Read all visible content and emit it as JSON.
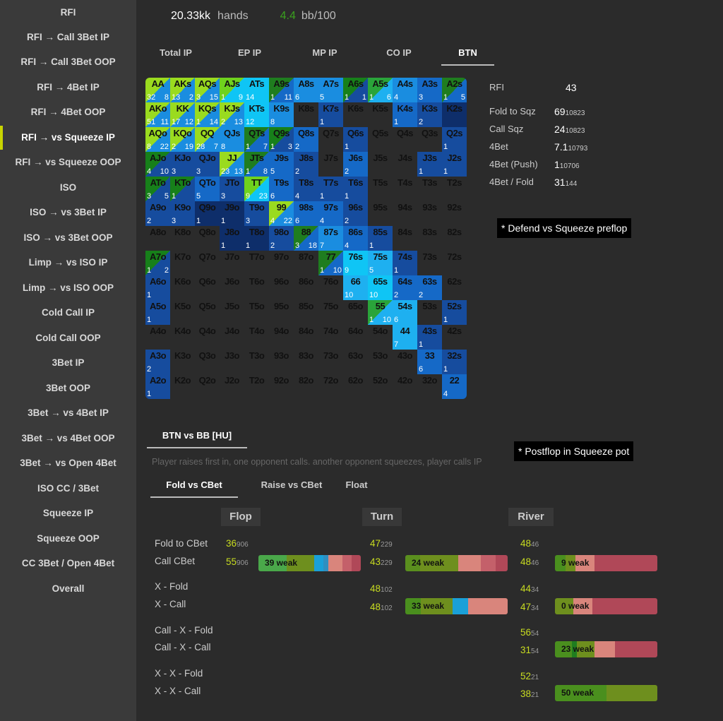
{
  "sidebar": {
    "items": [
      {
        "label": "RFI"
      },
      {
        "label": "RFI → Call 3Bet IP"
      },
      {
        "label": "RFI → Call 3Bet OOP"
      },
      {
        "label": "RFI → 4Bet IP"
      },
      {
        "label": "RFI → 4Bet OOP"
      },
      {
        "label": "RFI → vs Squeeze IP",
        "active": true
      },
      {
        "label": "RFI → vs Squeeze OOP"
      },
      {
        "label": "ISO"
      },
      {
        "label": "ISO → vs 3Bet IP"
      },
      {
        "label": "ISO → vs 3Bet OOP"
      },
      {
        "label": "Limp → vs ISO IP"
      },
      {
        "label": "Limp → vs ISO OOP"
      },
      {
        "label": "Cold Call IP"
      },
      {
        "label": "Cold Call OOP"
      },
      {
        "label": "3Bet IP"
      },
      {
        "label": "3Bet OOP"
      },
      {
        "label": "3Bet → vs 4Bet IP"
      },
      {
        "label": "3Bet → vs 4Bet OOP"
      },
      {
        "label": "3Bet → vs Open 4Bet"
      },
      {
        "label": "ISO CC / 3Bet"
      },
      {
        "label": "Squeeze IP"
      },
      {
        "label": "Squeeze OOP"
      },
      {
        "label": "CC 3Bet / Open 4Bet"
      },
      {
        "label": "Overall"
      }
    ]
  },
  "header": {
    "hands_value": "20.33kk",
    "hands_label": "hands",
    "bb_value": "4.4",
    "bb_label": "bb/100"
  },
  "position_tabs": [
    {
      "label": "Total IP"
    },
    {
      "label": "EP IP"
    },
    {
      "label": "MP IP"
    },
    {
      "label": "CO IP"
    },
    {
      "label": "BTN",
      "active": true
    }
  ],
  "range_grid": {
    "colors": {
      "blue_dark": "#0e2e6a",
      "blue_light": "#0fc5f5",
      "green": "#9adb1f"
    },
    "rows": [
      [
        [
          "AA",
          "gA",
          "32",
          "8"
        ],
        [
          "AKs",
          "gA",
          "13",
          "2"
        ],
        [
          "AQs",
          "gA",
          "3",
          "15"
        ],
        [
          "AJs",
          "gC",
          "1",
          "9"
        ],
        [
          "ATs",
          "c6",
          "",
          "14"
        ],
        [
          "A9s",
          "gB",
          "1",
          "11"
        ],
        [
          "A8s",
          "c4",
          "",
          "6"
        ],
        [
          "A7s",
          "c4",
          "",
          "5"
        ],
        [
          "A6s",
          "gD",
          "1",
          "1"
        ],
        [
          "A5s",
          "gE",
          "1",
          "6"
        ],
        [
          "A4s",
          "c4",
          "",
          "4"
        ],
        [
          "A3s",
          "c3",
          "",
          "3"
        ],
        [
          "A2s",
          "gB",
          "1",
          "5"
        ]
      ],
      [
        [
          "AKo",
          "gA",
          "51",
          "11"
        ],
        [
          "KK",
          "gA",
          "17",
          "12"
        ],
        [
          "KQs",
          "gA",
          "1",
          "14"
        ],
        [
          "KJs",
          "gA",
          "2",
          "13"
        ],
        [
          "KTs",
          "c6",
          "",
          "12"
        ],
        [
          "K9s",
          "c4",
          "",
          "8"
        ],
        [
          "K8s",
          "c0",
          "",
          ""
        ],
        [
          "K7s",
          "c2",
          "",
          "1"
        ],
        [
          "K6s",
          "c0",
          "",
          ""
        ],
        [
          "K5s",
          "c0",
          "",
          ""
        ],
        [
          "K4s",
          "c3",
          "",
          "1"
        ],
        [
          "K3s",
          "c2",
          "",
          "2"
        ],
        [
          "K2s",
          "c1",
          "",
          ""
        ]
      ],
      [
        [
          "AQo",
          "gA",
          "8",
          "22"
        ],
        [
          "KQo",
          "gA",
          "2",
          "19"
        ],
        [
          "QQ",
          "gA",
          "28",
          "7"
        ],
        [
          "QJs",
          "c4",
          "",
          "8"
        ],
        [
          "QTs",
          "gB",
          "1",
          "7"
        ],
        [
          "Q9s",
          "gD",
          "1",
          "3"
        ],
        [
          "Q8s",
          "c3",
          "",
          "2"
        ],
        [
          "Q7s",
          "c0",
          "",
          ""
        ],
        [
          "Q6s",
          "c2",
          "",
          "1"
        ],
        [
          "Q5s",
          "c0",
          "",
          ""
        ],
        [
          "Q4s",
          "c0",
          "",
          ""
        ],
        [
          "Q3s",
          "c0",
          "",
          ""
        ],
        [
          "Q2s",
          "c2",
          "",
          "1"
        ]
      ],
      [
        [
          "AJo",
          "gD",
          "4",
          "10"
        ],
        [
          "KJo",
          "c2",
          "",
          "3"
        ],
        [
          "QJo",
          "c2",
          "",
          "3"
        ],
        [
          "JJ",
          "gA",
          "23",
          "13"
        ],
        [
          "JTs",
          "gB",
          "1",
          "8"
        ],
        [
          "J9s",
          "c3",
          "",
          "5"
        ],
        [
          "J8s",
          "c2",
          "",
          "2"
        ],
        [
          "J7s",
          "c0",
          "",
          ""
        ],
        [
          "J6s",
          "c3",
          "",
          "2"
        ],
        [
          "J5s",
          "c0",
          "",
          ""
        ],
        [
          "J4s",
          "c0",
          "",
          ""
        ],
        [
          "J3s",
          "c2",
          "",
          "1"
        ],
        [
          "J2s",
          "c2",
          "",
          "1"
        ]
      ],
      [
        [
          "ATo",
          "gD",
          "3",
          "5"
        ],
        [
          "KTo",
          "gD",
          "",
          "1"
        ],
        [
          "QTo",
          "c3",
          "",
          "5"
        ],
        [
          "JTo",
          "c2",
          "",
          "3"
        ],
        [
          "TT",
          "gC",
          "9",
          "23"
        ],
        [
          "T9s",
          "c3",
          "",
          "6"
        ],
        [
          "T8s",
          "c2",
          "",
          "4"
        ],
        [
          "T7s",
          "c2",
          "",
          "1"
        ],
        [
          "T6s",
          "c2",
          "",
          "1"
        ],
        [
          "T5s",
          "c0",
          "",
          ""
        ],
        [
          "T4s",
          "c0",
          "",
          ""
        ],
        [
          "T3s",
          "c0",
          "",
          ""
        ],
        [
          "T2s",
          "c0",
          "",
          ""
        ]
      ],
      [
        [
          "A9o",
          "c2",
          "",
          "2"
        ],
        [
          "K9o",
          "c2",
          "",
          "3"
        ],
        [
          "Q9o",
          "c1",
          "",
          "1"
        ],
        [
          "J9o",
          "c1",
          "",
          "1"
        ],
        [
          "T9o",
          "c2",
          "",
          "3"
        ],
        [
          "99",
          "gA",
          "4",
          "22"
        ],
        [
          "98s",
          "c3",
          "",
          "6"
        ],
        [
          "97s",
          "c3",
          "",
          "4"
        ],
        [
          "96s",
          "c2",
          "",
          "2"
        ],
        [
          "95s",
          "c0",
          "",
          ""
        ],
        [
          "94s",
          "c0",
          "",
          ""
        ],
        [
          "93s",
          "c0",
          "",
          ""
        ],
        [
          "92s",
          "c0",
          "",
          ""
        ]
      ],
      [
        [
          "A8o",
          "c0",
          "",
          ""
        ],
        [
          "K8o",
          "c0",
          "",
          ""
        ],
        [
          "Q8o",
          "c0",
          "",
          ""
        ],
        [
          "J8o",
          "c1",
          "",
          "1"
        ],
        [
          "T8o",
          "c1",
          "",
          "1"
        ],
        [
          "98o",
          "c2",
          "",
          "2"
        ],
        [
          "88",
          "gB",
          "3",
          "18"
        ],
        [
          "87s",
          "c4",
          "",
          "7"
        ],
        [
          "86s",
          "c3",
          "",
          "4"
        ],
        [
          "85s",
          "c2",
          "",
          "1"
        ],
        [
          "84s",
          "c0",
          "",
          ""
        ],
        [
          "83s",
          "c0",
          "",
          ""
        ],
        [
          "82s",
          "c0",
          "",
          ""
        ]
      ],
      [
        [
          "A7o",
          "gD",
          "1",
          "2"
        ],
        [
          "K7o",
          "c0",
          "",
          ""
        ],
        [
          "Q7o",
          "c0",
          "",
          ""
        ],
        [
          "J7o",
          "c0",
          "",
          ""
        ],
        [
          "T7o",
          "c0",
          "",
          ""
        ],
        [
          "97o",
          "c0",
          "",
          ""
        ],
        [
          "87o",
          "c0",
          "",
          ""
        ],
        [
          "77",
          "gB",
          "1",
          "10"
        ],
        [
          "76s",
          "c6",
          "",
          "9"
        ],
        [
          "75s",
          "c5",
          "",
          "5"
        ],
        [
          "74s",
          "c2",
          "",
          "1"
        ],
        [
          "73s",
          "c0",
          "",
          ""
        ],
        [
          "72s",
          "c0",
          "",
          ""
        ]
      ],
      [
        [
          "A6o",
          "c2",
          "",
          "1"
        ],
        [
          "K6o",
          "c0",
          "",
          ""
        ],
        [
          "Q6o",
          "c0",
          "",
          ""
        ],
        [
          "J6o",
          "c0",
          "",
          ""
        ],
        [
          "T6o",
          "c0",
          "",
          ""
        ],
        [
          "96o",
          "c0",
          "",
          ""
        ],
        [
          "86o",
          "c0",
          "",
          ""
        ],
        [
          "76o",
          "c0",
          "",
          ""
        ],
        [
          "66",
          "c5",
          "",
          "10"
        ],
        [
          "65s",
          "c6",
          "",
          "10"
        ],
        [
          "64s",
          "c3",
          "",
          "2"
        ],
        [
          "63s",
          "c3",
          "",
          "2"
        ],
        [
          "62s",
          "c0",
          "",
          ""
        ]
      ],
      [
        [
          "A5o",
          "c2",
          "",
          "1"
        ],
        [
          "K5o",
          "c0",
          "",
          ""
        ],
        [
          "Q5o",
          "c0",
          "",
          ""
        ],
        [
          "J5o",
          "c0",
          "",
          ""
        ],
        [
          "T5o",
          "c0",
          "",
          ""
        ],
        [
          "95o",
          "c0",
          "",
          ""
        ],
        [
          "85o",
          "c0",
          "",
          ""
        ],
        [
          "75o",
          "c0",
          "",
          ""
        ],
        [
          "65o",
          "c0",
          "",
          ""
        ],
        [
          "55",
          "gE",
          "1",
          "10"
        ],
        [
          "54s",
          "c5",
          "",
          "6"
        ],
        [
          "53s",
          "c0",
          "",
          ""
        ],
        [
          "52s",
          "c2",
          "",
          "1"
        ]
      ],
      [
        [
          "A4o",
          "c0",
          "",
          ""
        ],
        [
          "K4o",
          "c0",
          "",
          ""
        ],
        [
          "Q4o",
          "c0",
          "",
          ""
        ],
        [
          "J4o",
          "c0",
          "",
          ""
        ],
        [
          "T4o",
          "c0",
          "",
          ""
        ],
        [
          "94o",
          "c0",
          "",
          ""
        ],
        [
          "84o",
          "c0",
          "",
          ""
        ],
        [
          "74o",
          "c0",
          "",
          ""
        ],
        [
          "64o",
          "c0",
          "",
          ""
        ],
        [
          "54o",
          "c0",
          "",
          ""
        ],
        [
          "44",
          "c5",
          "",
          "7"
        ],
        [
          "43s",
          "c2",
          "",
          "1"
        ],
        [
          "42s",
          "c0",
          "",
          ""
        ]
      ],
      [
        [
          "A3o",
          "c2",
          "",
          "2"
        ],
        [
          "K3o",
          "c0",
          "",
          ""
        ],
        [
          "Q3o",
          "c0",
          "",
          ""
        ],
        [
          "J3o",
          "c0",
          "",
          ""
        ],
        [
          "T3o",
          "c0",
          "",
          ""
        ],
        [
          "93o",
          "c0",
          "",
          ""
        ],
        [
          "83o",
          "c0",
          "",
          ""
        ],
        [
          "73o",
          "c0",
          "",
          ""
        ],
        [
          "63o",
          "c0",
          "",
          ""
        ],
        [
          "53o",
          "c0",
          "",
          ""
        ],
        [
          "43o",
          "c0",
          "",
          ""
        ],
        [
          "33",
          "c3",
          "",
          "6"
        ],
        [
          "32s",
          "c2",
          "",
          "1"
        ]
      ],
      [
        [
          "A2o",
          "c2",
          "",
          "1"
        ],
        [
          "K2o",
          "c0",
          "",
          ""
        ],
        [
          "Q2o",
          "c0",
          "",
          ""
        ],
        [
          "J2o",
          "c0",
          "",
          ""
        ],
        [
          "T2o",
          "c0",
          "",
          ""
        ],
        [
          "92o",
          "c0",
          "",
          ""
        ],
        [
          "82o",
          "c0",
          "",
          ""
        ],
        [
          "72o",
          "c0",
          "",
          ""
        ],
        [
          "62o",
          "c0",
          "",
          ""
        ],
        [
          "52o",
          "c0",
          "",
          ""
        ],
        [
          "42o",
          "c0",
          "",
          ""
        ],
        [
          "32o",
          "c0",
          "",
          ""
        ],
        [
          "22",
          "c3",
          "",
          "4"
        ]
      ]
    ]
  },
  "stats": [
    {
      "label": "RFI",
      "value": "43",
      "sub": ""
    },
    {
      "label": "Fold to Sqz",
      "value": "69",
      "sub": "10823"
    },
    {
      "label": "Call Sqz",
      "value": "24",
      "sub": "10823"
    },
    {
      "label": "4Bet",
      "value": "7.1",
      "sub": "10793"
    },
    {
      "label": "4Bet (Push)",
      "value": "1",
      "sub": "10706"
    },
    {
      "label": "4Bet / Fold",
      "value": "31",
      "sub": "144"
    }
  ],
  "notes": {
    "preflop": "* Defend vs Squeeze preflop",
    "postflop": "* Postflop in Squeeze pot"
  },
  "matchup_tab": {
    "label": "BTN vs BB [HU]"
  },
  "subtitle": "Player raises first in, one opponent calls. another opponent squeezes, player calls IP",
  "postflop_tabs": [
    {
      "label": "Fold vs CBet",
      "active": true
    },
    {
      "label": "Raise vs CBet"
    },
    {
      "label": "Float"
    }
  ],
  "columns": {
    "flop": "Flop",
    "turn": "Turn",
    "river": "River"
  },
  "row_labels": [
    "Fold to CBet",
    "Call CBet",
    "X - Fold",
    "X - Call",
    "Call - X - Fold",
    "Call - X - Call",
    "X - X - Fold",
    "X - X - Call"
  ],
  "values": {
    "flop": [
      {
        "v": "36",
        "s": "906"
      },
      {
        "v": "55",
        "s": "906"
      }
    ],
    "turn": [
      {
        "v": "47",
        "s": "229"
      },
      {
        "v": "43",
        "s": "229"
      },
      {
        "v": "48",
        "s": "102"
      },
      {
        "v": "48",
        "s": "102"
      }
    ],
    "river": [
      {
        "v": "48",
        "s": "46"
      },
      {
        "v": "48",
        "s": "46"
      },
      {
        "v": "44",
        "s": "34"
      },
      {
        "v": "47",
        "s": "34"
      },
      {
        "v": "56",
        "s": "54"
      },
      {
        "v": "31",
        "s": "54"
      },
      {
        "v": "52",
        "s": "21"
      },
      {
        "v": "38",
        "s": "21"
      }
    ]
  },
  "bars": [
    {
      "label": "39 weak",
      "segments": [
        [
          "#4aa84a",
          3
        ],
        [
          "#6e8f1e",
          3
        ],
        [
          "#1aa0d8",
          1
        ],
        [
          "#2f8fc0",
          0.5
        ],
        [
          "#d9857c",
          1.5
        ],
        [
          "#c4606a",
          1
        ],
        [
          "#b04858",
          1
        ]
      ]
    },
    {
      "label": "24 weak",
      "segments": [
        [
          "#5a8f1e",
          1
        ],
        [
          "#6e8f1e",
          2.5
        ],
        [
          "#d9857c",
          1.5
        ],
        [
          "#c4606a",
          1
        ],
        [
          "#b04858",
          0.8
        ]
      ]
    },
    {
      "label": "9 weak",
      "segments": [
        [
          "#4a8f1e",
          0.6
        ],
        [
          "#6e8f1e",
          0.6
        ],
        [
          "#d9857c",
          1.1
        ],
        [
          "#b04858",
          3.7
        ]
      ]
    },
    {
      "label": "33 weak",
      "segments": [
        [
          "#4a8f1e",
          1
        ],
        [
          "#6e8f1e",
          2
        ],
        [
          "#1aa0d8",
          1
        ],
        [
          "#d9857c",
          2.5
        ]
      ]
    },
    {
      "label": "0 weak",
      "segments": [
        [
          "#6e8f1e",
          1
        ],
        [
          "#d9857c",
          1
        ],
        [
          "#b04858",
          3.5
        ]
      ]
    },
    {
      "label": "23 weak",
      "segments": [
        [
          "#4a8f1e",
          1
        ],
        [
          "#1f7d1f",
          0.3
        ],
        [
          "#6e8f1e",
          1
        ],
        [
          "#d9857c",
          1.2
        ],
        [
          "#b04858",
          2.5
        ]
      ]
    },
    {
      "label": "50 weak",
      "segments": [
        [
          "#4a8f1e",
          2.4
        ],
        [
          "#6e8f1e",
          2.4
        ]
      ]
    }
  ]
}
